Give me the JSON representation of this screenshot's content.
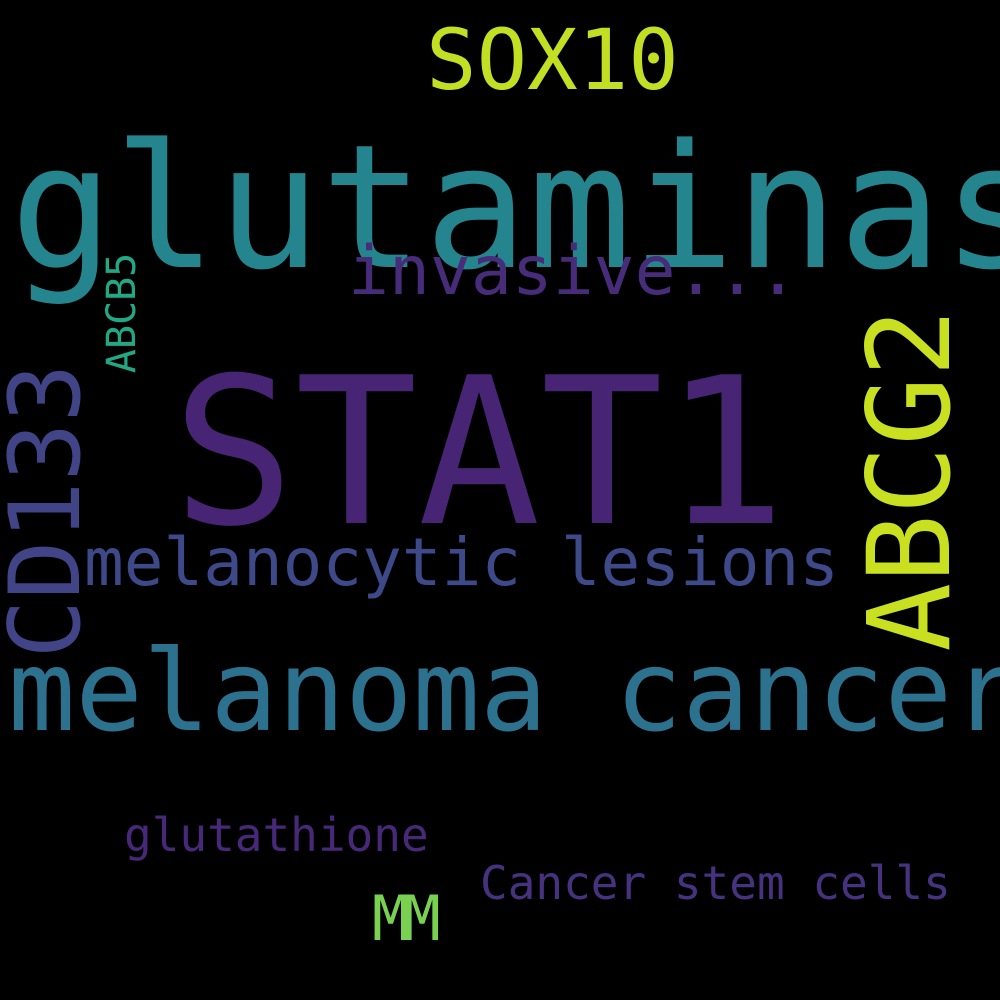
{
  "words": {
    "stat1": {
      "text": "STAT1",
      "color": "#482475"
    },
    "glutaminase": {
      "text": "glutaminase",
      "color": "#25858e"
    },
    "melanoma_cancer": {
      "text": "melanoma cancer",
      "color": "#2c728e"
    },
    "melanocytic_lesions": {
      "text": "melanocytic lesions",
      "color": "#3e4989"
    },
    "invasive": {
      "text": "invasive...",
      "color": "#472c7a"
    },
    "sox10": {
      "text": "SOX10",
      "color": "#c2df23"
    },
    "abcg2": {
      "text": "ABCG2",
      "color": "#c8e020"
    },
    "cd133": {
      "text": "CD133",
      "color": "#414487"
    },
    "abcb5": {
      "text": "ABCB5",
      "color": "#22a884"
    },
    "glutathione": {
      "text": "glutathione",
      "color": "#482878"
    },
    "cancer_stem_cells": {
      "text": "Cancer stem cells",
      "color": "#46327e"
    },
    "mm": {
      "text": "MM",
      "color": "#7ad151"
    }
  }
}
